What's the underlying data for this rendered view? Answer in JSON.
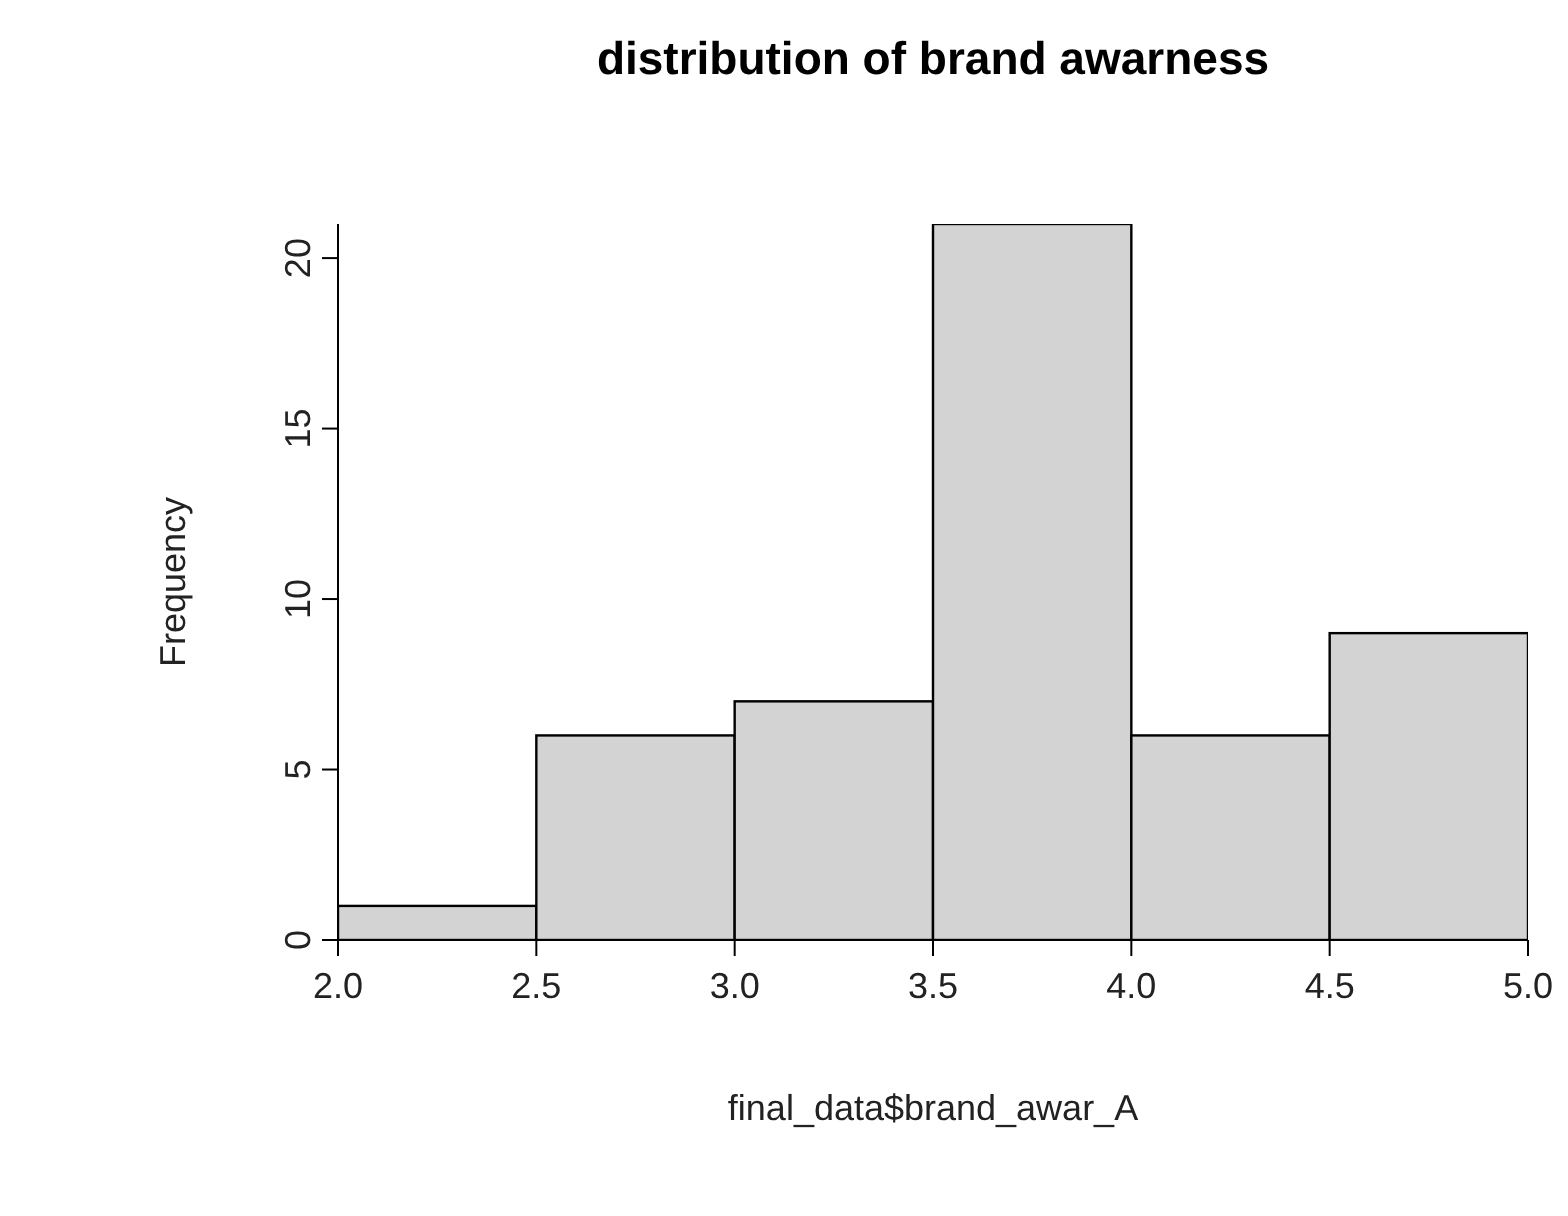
{
  "chart_data": {
    "type": "histogram",
    "title": "distribution of brand awarness",
    "xlabel": "final_data$brand_awar_A",
    "ylabel": "Frequency",
    "bins": [
      2.0,
      2.5,
      3.0,
      3.5,
      4.0,
      4.5,
      5.0
    ],
    "values": [
      1,
      6,
      7,
      21,
      6,
      9
    ],
    "color": "#d3d3d3",
    "xlim": [
      2,
      5
    ],
    "xticks": [
      {
        "value": 2,
        "label": "2.0"
      },
      {
        "value": 2.5,
        "label": "2.5"
      },
      {
        "value": 3,
        "label": "3.0"
      },
      {
        "value": 3.5,
        "label": "3.5"
      },
      {
        "value": 4,
        "label": "4.0"
      },
      {
        "value": 4.5,
        "label": "4.5"
      },
      {
        "value": 5,
        "label": "5.0"
      }
    ],
    "ylim": [
      0,
      21
    ],
    "yticks": [
      0,
      5,
      10,
      15,
      20
    ],
    "grid": false,
    "legend": false
  }
}
